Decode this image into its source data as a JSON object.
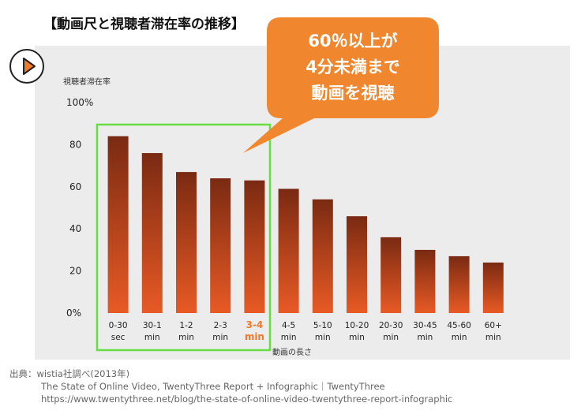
{
  "title": "【動画尺と視聴者滞在率の推移】",
  "callout": {
    "lines": [
      "60％以上が",
      "4分未満まで",
      "動画を視聴"
    ],
    "color": "#f0872e"
  },
  "highlight_color": "#66dd44",
  "play_icon": "play-icon",
  "chart_data": {
    "type": "bar",
    "ylabel": "視聴者滞在率",
    "xlabel": "動画の長さ",
    "ylim": [
      0,
      100
    ],
    "y_ticks": [
      "0%",
      "20",
      "40",
      "60",
      "80",
      "100%"
    ],
    "categories": [
      [
        "0-30",
        "sec"
      ],
      [
        "30-1",
        "min"
      ],
      [
        "1-2",
        "min"
      ],
      [
        "2-3",
        "min"
      ],
      [
        "3-4",
        "min"
      ],
      [
        "4-5",
        "min"
      ],
      [
        "5-10",
        "min"
      ],
      [
        "10-20",
        "min"
      ],
      [
        "20-30",
        "min"
      ],
      [
        "30-45",
        "min"
      ],
      [
        "45-60",
        "min"
      ],
      [
        "60+",
        "min"
      ]
    ],
    "values": [
      84,
      76,
      67,
      64,
      63,
      59,
      54,
      46,
      36,
      30,
      27,
      24
    ],
    "highlighted_range": [
      0,
      4
    ],
    "emphasized_index": 4,
    "bar_color_top": "#7a2a12",
    "bar_color_bottom": "#e85a25",
    "emphasis_label_color": "#f07a2a",
    "grid": false
  },
  "source": {
    "label": "出典：wistia社調べ(2013年)",
    "lines": [
      "The State of Online Video, TwentyThree Report + Infographic｜TwentyThree",
      "https://www.twentythree.net/blog/the-state-of-online-video-twentythree-report-infographic"
    ]
  }
}
